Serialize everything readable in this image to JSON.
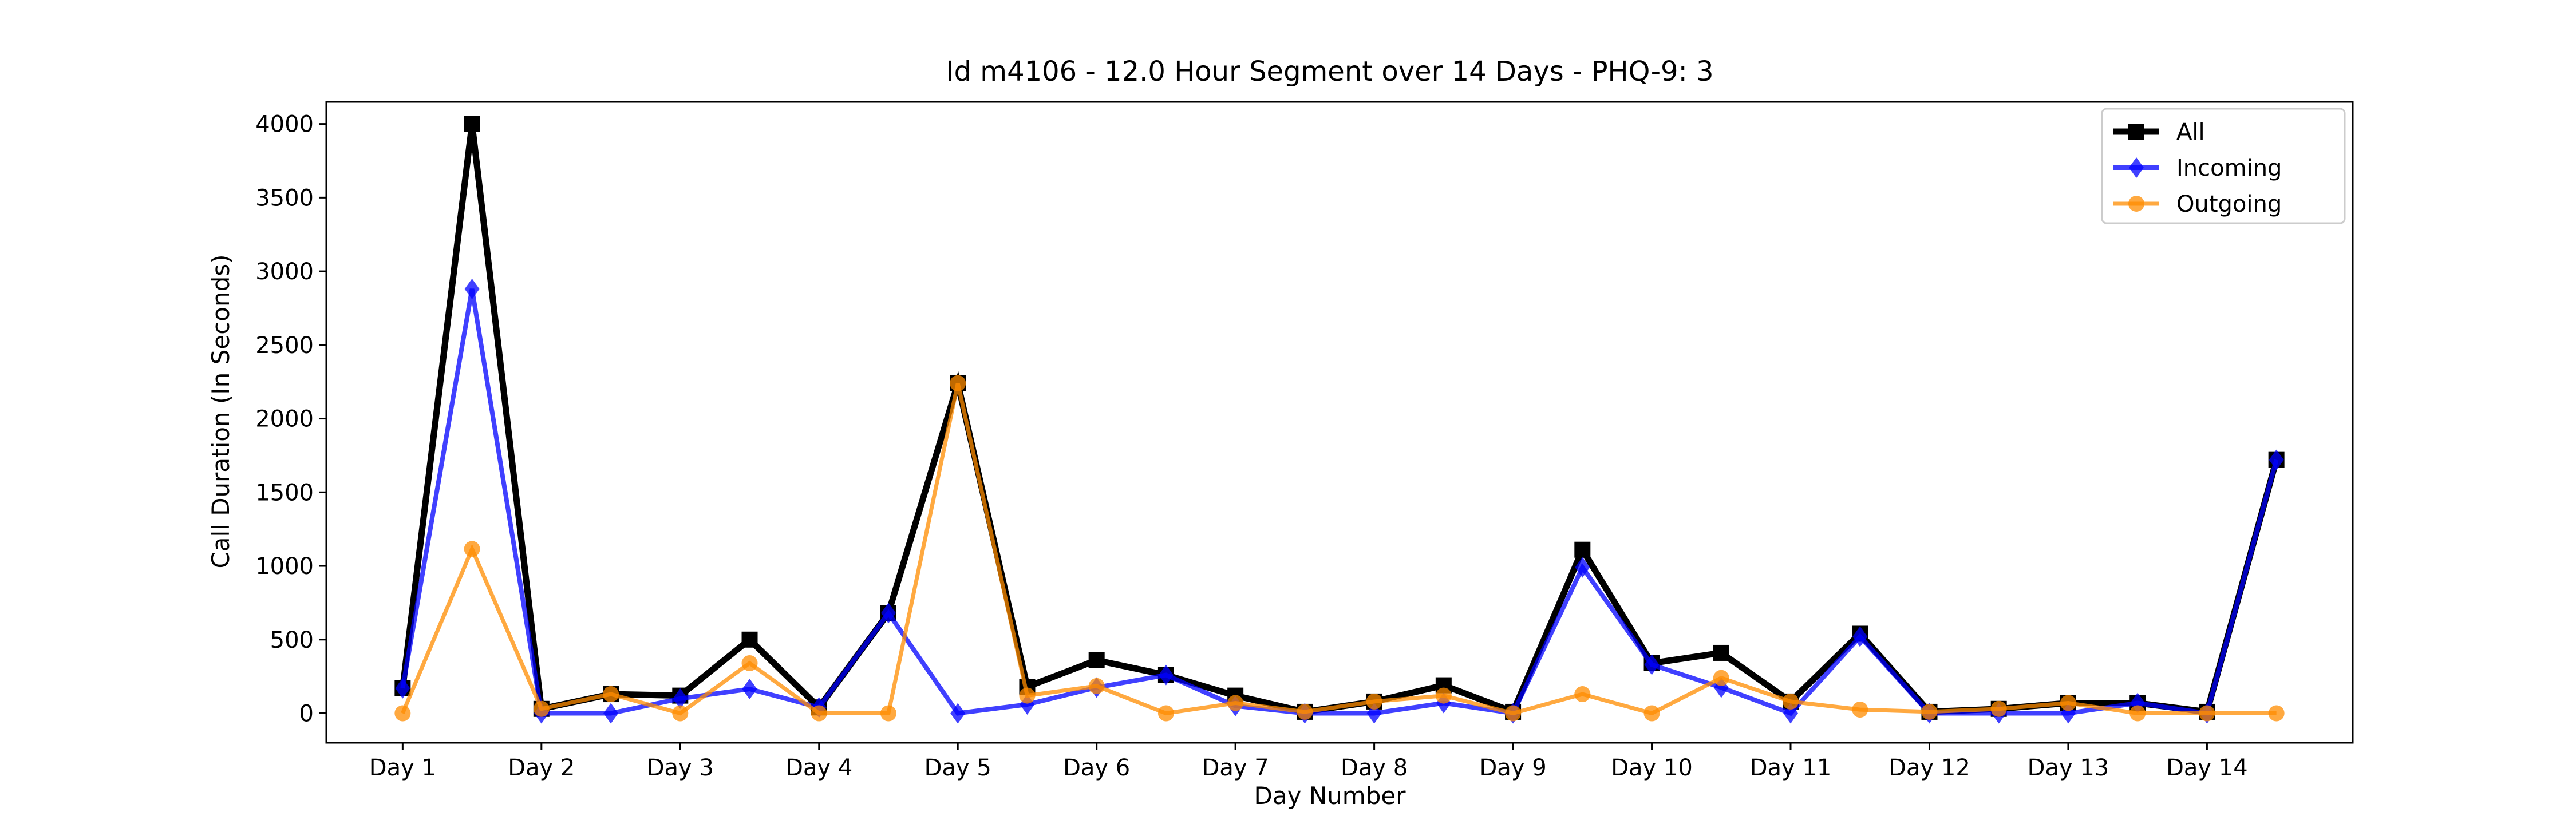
{
  "chart_data": {
    "type": "line",
    "title": "Id m4106 - 12.0 Hour Segment over 14 Days - PHQ-9: 3",
    "xlabel": "Day Number",
    "ylabel": "Call Duration (In Seconds)",
    "x": [
      1,
      1.5,
      2,
      2.5,
      3,
      3.5,
      4,
      4.5,
      5,
      5.5,
      6,
      6.5,
      7,
      7.5,
      8,
      8.5,
      9,
      9.5,
      10,
      10.5,
      11,
      11.5,
      12,
      12.5,
      13,
      13.5,
      14,
      14.5
    ],
    "xticks": [
      1,
      2,
      3,
      4,
      5,
      6,
      7,
      8,
      9,
      10,
      11,
      12,
      13,
      14
    ],
    "xtick_labels": [
      "Day 1",
      "Day 2",
      "Day 3",
      "Day 4",
      "Day 5",
      "Day 6",
      "Day 7",
      "Day 8",
      "Day 9",
      "Day 10",
      "Day 11",
      "Day 12",
      "Day 13",
      "Day 14"
    ],
    "xlim": [
      0.45,
      15.05
    ],
    "ylim": [
      -200,
      4150
    ],
    "yticks": [
      0,
      500,
      1000,
      1500,
      2000,
      2500,
      3000,
      3500,
      4000
    ],
    "ytick_labels": [
      "0",
      "500",
      "1000",
      "1500",
      "2000",
      "2500",
      "3000",
      "3500",
      "4000"
    ],
    "grid": false,
    "legend_position": "top-right",
    "series": [
      {
        "name": "All",
        "color": "#000000",
        "marker": "square",
        "values": [
          170,
          4000,
          30,
          130,
          120,
          500,
          40,
          680,
          2240,
          180,
          360,
          260,
          120,
          10,
          80,
          190,
          10,
          1110,
          340,
          410,
          80,
          540,
          10,
          30,
          70,
          70,
          10,
          1720
        ]
      },
      {
        "name": "Incoming",
        "color": "#0000ff",
        "marker": "diamond",
        "values": [
          170,
          2880,
          0,
          0,
          100,
          165,
          40,
          680,
          0,
          60,
          175,
          260,
          50,
          0,
          0,
          70,
          0,
          990,
          330,
          175,
          0,
          520,
          0,
          0,
          0,
          70,
          0,
          1720
        ]
      },
      {
        "name": "Outgoing",
        "color": "#ff8c00",
        "marker": "circle",
        "values": [
          0,
          1115,
          30,
          130,
          0,
          340,
          0,
          0,
          2240,
          120,
          185,
          0,
          70,
          10,
          80,
          120,
          0,
          130,
          0,
          240,
          80,
          25,
          10,
          30,
          70,
          0,
          0,
          0
        ]
      }
    ]
  }
}
